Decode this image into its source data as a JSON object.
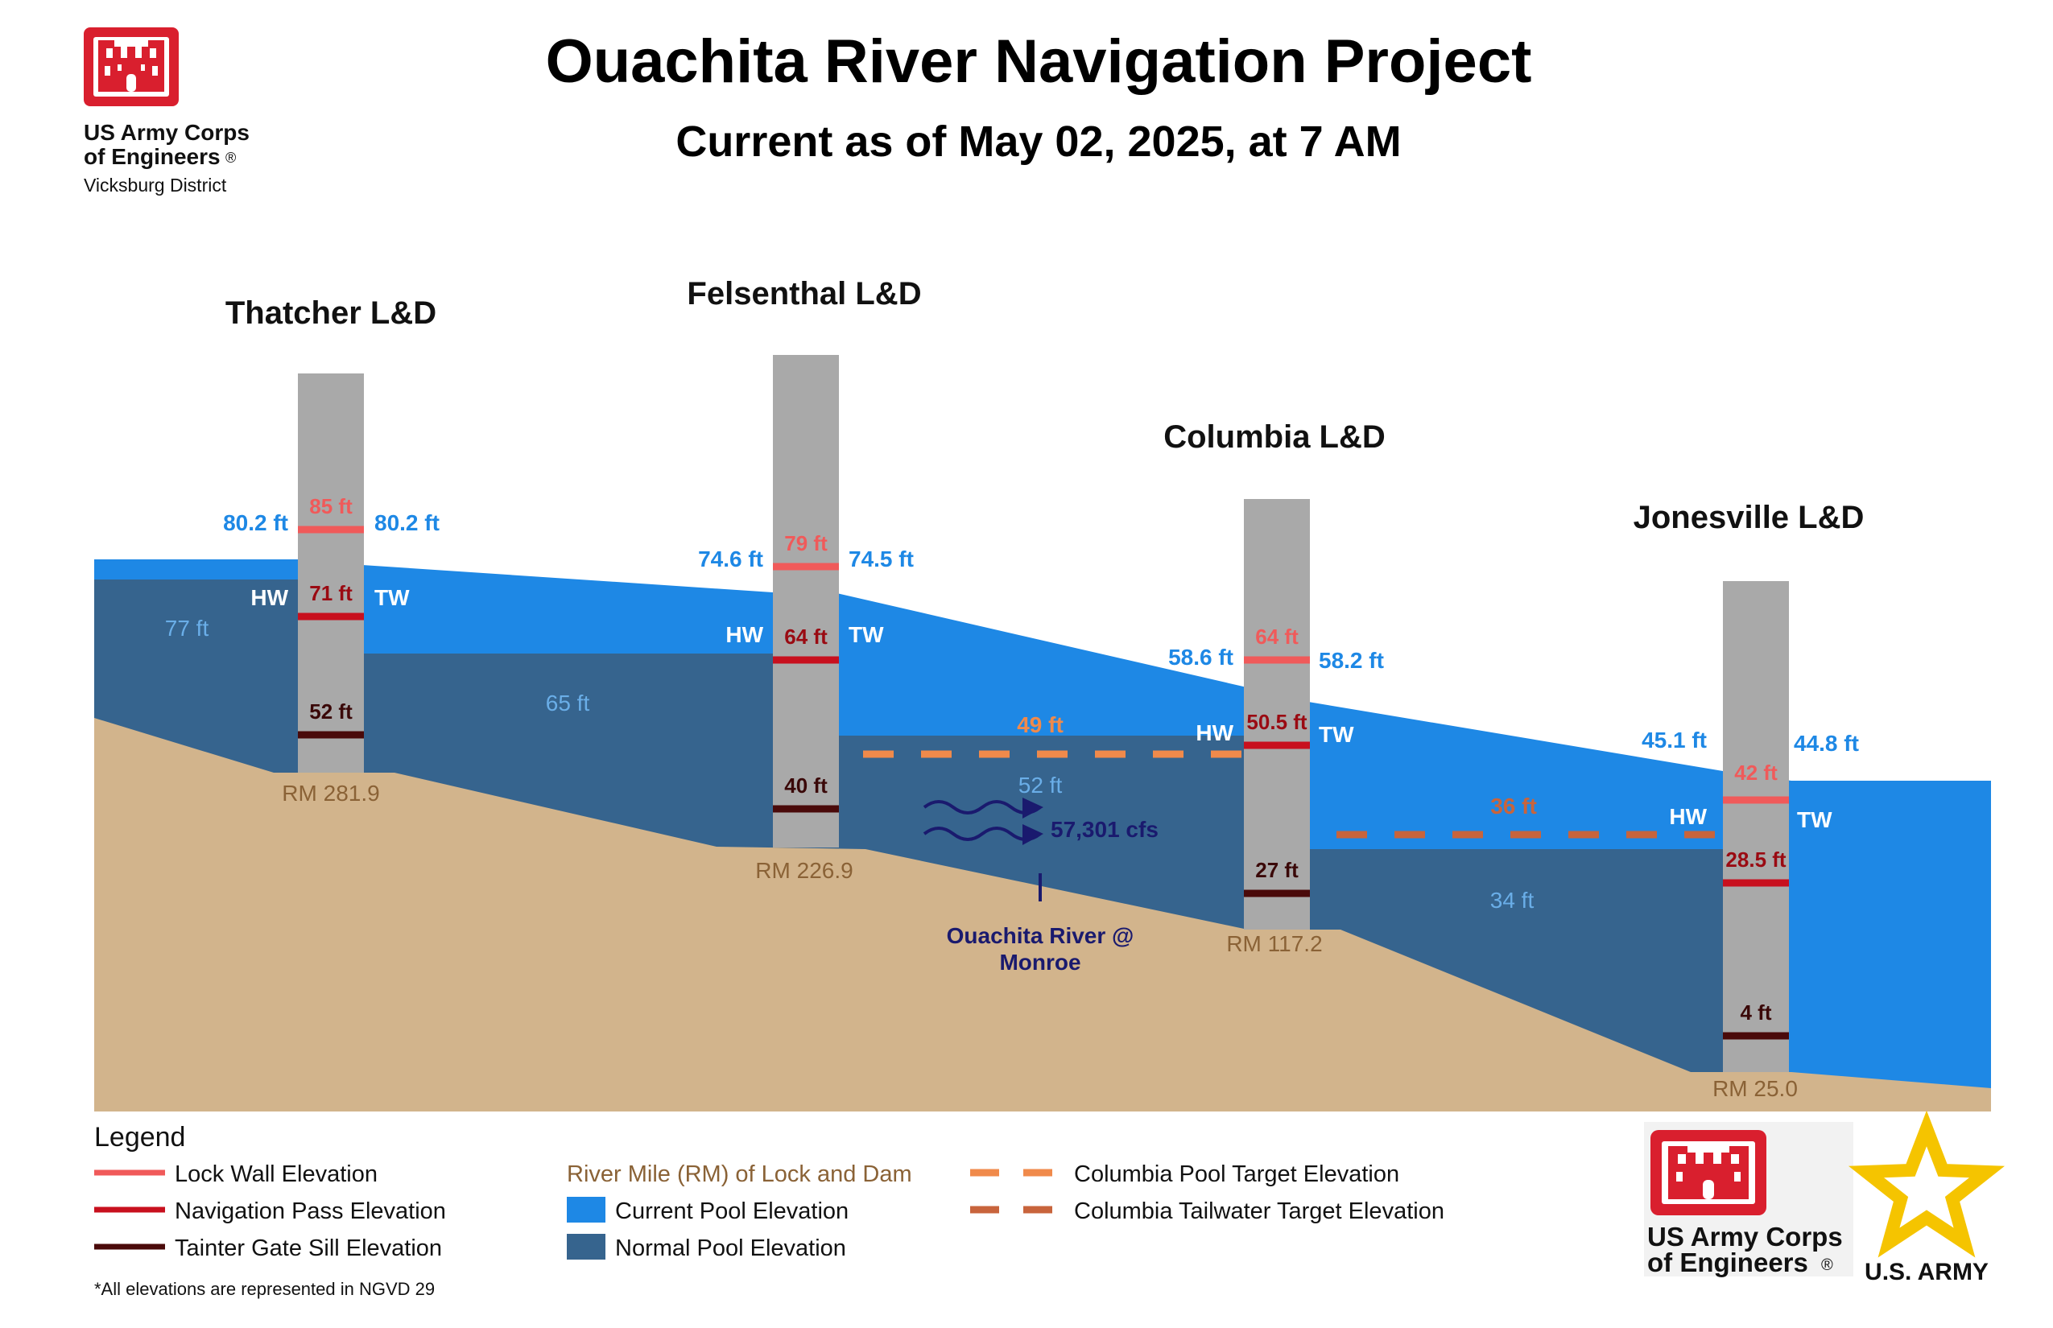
{
  "header": {
    "title": "Ouachita River Navigation Project",
    "subtitle": "Current as of May 02, 2025, at 7 AM",
    "org_line1": "US Army Corps",
    "org_line2": "of Engineers",
    "org_district": "Vicksburg District",
    "registered_mark": "®"
  },
  "colors": {
    "current_pool": "#1e88e5",
    "normal_pool": "#36648e",
    "ground": "#d2b48c",
    "tower": "#a9a9a9",
    "lock_wall": "#f05a5a",
    "navigation_pass": "#c8101e",
    "tainter_gate": "#4a0a0a",
    "columbia_pool_target": "#f08a4b",
    "columbia_tailwater_target": "#c8643c",
    "river_mile_text": "#8a6236",
    "flow": "#1a1a6e"
  },
  "locks": [
    {
      "name": "Thatcher L&D",
      "hw": "80.2 ft",
      "tw": "80.2 ft",
      "lock_wall": "85 ft",
      "nav_pass": "71 ft",
      "sill": "52 ft",
      "river_mile": "RM 281.9",
      "hw_label": "HW",
      "tw_label": "TW"
    },
    {
      "name": "Felsenthal L&D",
      "hw": "74.6 ft",
      "tw": "74.5 ft",
      "lock_wall": "79 ft",
      "nav_pass": "64 ft",
      "sill": "40 ft",
      "river_mile": "RM 226.9",
      "hw_label": "HW",
      "tw_label": "TW"
    },
    {
      "name": "Columbia L&D",
      "hw": "58.6 ft",
      "tw": "58.2 ft",
      "lock_wall": "64 ft",
      "nav_pass": "50.5 ft",
      "sill": "27 ft",
      "river_mile": "RM 117.2",
      "hw_label": "HW",
      "tw_label": "TW"
    },
    {
      "name": "Jonesville L&D",
      "hw": "45.1 ft",
      "tw": "44.8 ft",
      "lock_wall": "42 ft",
      "nav_pass": "28.5 ft",
      "sill": "4 ft",
      "river_mile": "RM 25.0",
      "hw_label": "HW",
      "tw_label": "TW"
    }
  ],
  "normal_pools": [
    "77 ft",
    "65 ft",
    "52 ft",
    "34 ft"
  ],
  "targets": {
    "columbia_pool": "49 ft",
    "columbia_tailwater": "36 ft"
  },
  "gauge": {
    "flow": "57,301 cfs",
    "name_line1": "Ouachita River @",
    "name_line2": "Monroe"
  },
  "legend": {
    "title": "Legend",
    "lock_wall": "Lock Wall Elevation",
    "nav_pass": "Navigation Pass Elevation",
    "sill": "Tainter Gate Sill Elevation",
    "river_mile": "River Mile (RM) of Lock and Dam",
    "current_pool": "Current Pool Elevation",
    "normal_pool": "Normal Pool Elevation",
    "pool_target": "Columbia Pool Target Elevation",
    "tailwater_target": "Columbia Tailwater Target Elevation",
    "footnote": "*All elevations are represented in NGVD 29"
  },
  "footer": {
    "org_line1": "US Army Corps",
    "org_line2": "of Engineers",
    "army": "U.S. ARMY"
  }
}
